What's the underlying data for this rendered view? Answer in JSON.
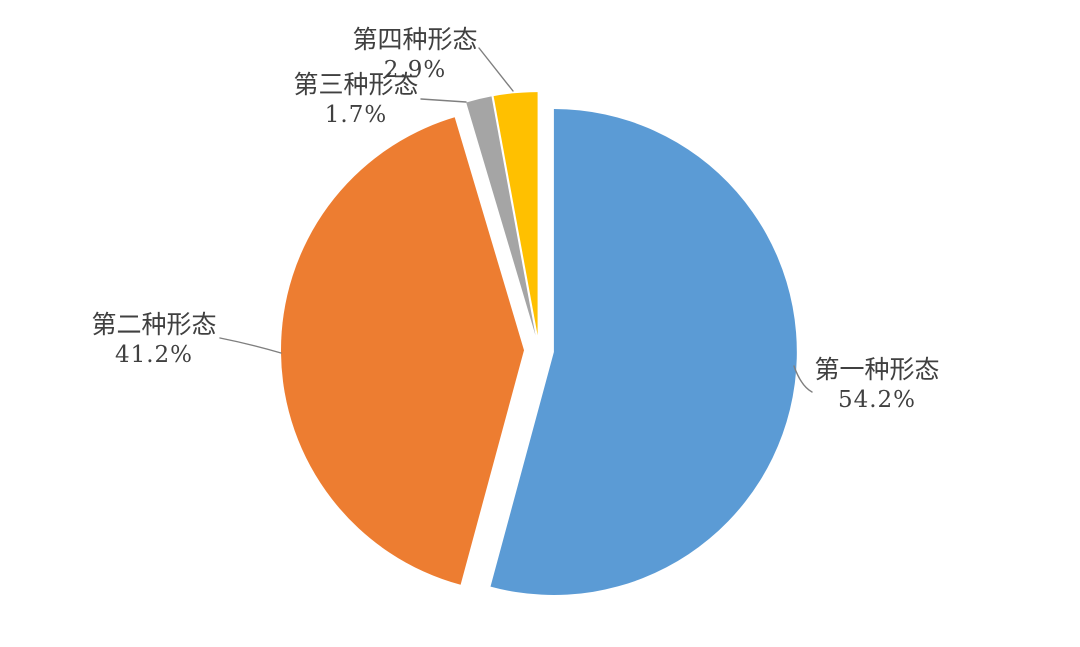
{
  "chart": {
    "background": "#ffffff",
    "text_color": "#404040",
    "leader_line_color": "#7f7f7f"
  },
  "chart_data": {
    "type": "pie",
    "title": "",
    "legend_position": "none",
    "style": "exploded",
    "direction": "clockwise",
    "start_angle_deg": 0,
    "categories": [
      "第一种形态",
      "第二种形态",
      "第三种形态",
      "第四种形态"
    ],
    "values": [
      54.2,
      41.2,
      1.7,
      2.9
    ],
    "slices": [
      {
        "label": "第一种形态",
        "pct_label": "54.2%",
        "value": 54.2,
        "color": "#5b9bd5"
      },
      {
        "label": "第二种形态",
        "pct_label": "41.2%",
        "value": 41.2,
        "color": "#ed7d31"
      },
      {
        "label": "第三种形态",
        "pct_label": "1.7%",
        "value": 1.7,
        "color": "#a5a5a5"
      },
      {
        "label": "第四种形态",
        "pct_label": "2.9%",
        "value": 2.9,
        "color": "#ffc000"
      }
    ]
  }
}
